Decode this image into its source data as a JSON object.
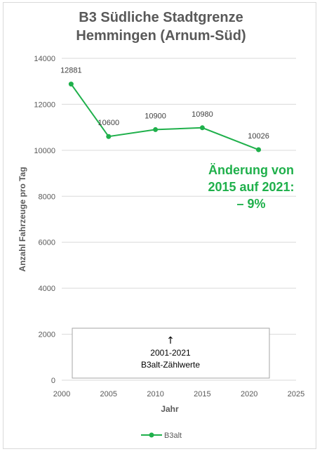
{
  "chart": {
    "title_line1": "B3 Südliche Stadtgrenze",
    "title_line2": "Hemmingen (Arnum-Süd)",
    "annotation_line1": "Änderung von",
    "annotation_line2": "2015 auf 2021:",
    "annotation_line3": "– 9%",
    "box_arrow": "↑",
    "box_line1": "2001-2021",
    "box_line2": "B3alt-Zählwerte"
  },
  "chart_data": {
    "type": "line",
    "title": "B3 Südliche Stadtgrenze Hemmingen (Arnum-Süd)",
    "xlabel": "Jahr",
    "ylabel": "Anzahl Fahrzeuge pro Tag",
    "xlim": [
      2000,
      2025
    ],
    "ylim": [
      0,
      14000
    ],
    "xticks": [
      2000,
      2005,
      2010,
      2015,
      2020,
      2025
    ],
    "yticks": [
      0,
      2000,
      4000,
      6000,
      8000,
      10000,
      12000,
      14000
    ],
    "grid": "horizontal",
    "legend_position": "bottom",
    "series": [
      {
        "name": "B3alt",
        "color": "#1fb04b",
        "x": [
          2001,
          2005,
          2010,
          2015,
          2021
        ],
        "values": [
          12881,
          10600,
          10900,
          10980,
          10026
        ],
        "labels": [
          "12881",
          "10600",
          "10900",
          "10980",
          "10026"
        ]
      }
    ]
  }
}
